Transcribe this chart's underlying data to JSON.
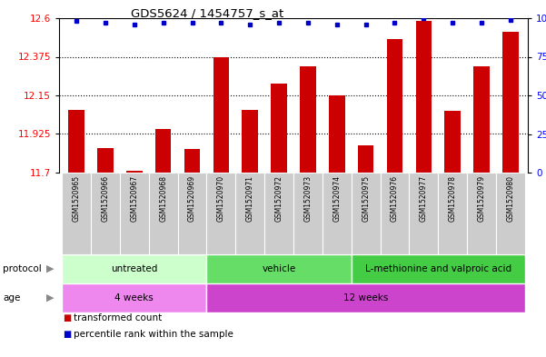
{
  "title": "GDS5624 / 1454757_s_at",
  "samples": [
    "GSM1520965",
    "GSM1520966",
    "GSM1520967",
    "GSM1520968",
    "GSM1520969",
    "GSM1520970",
    "GSM1520971",
    "GSM1520972",
    "GSM1520973",
    "GSM1520974",
    "GSM1520975",
    "GSM1520976",
    "GSM1520977",
    "GSM1520978",
    "GSM1520979",
    "GSM1520980"
  ],
  "bar_values": [
    12.065,
    11.845,
    11.71,
    11.955,
    11.835,
    12.37,
    12.065,
    12.22,
    12.32,
    12.15,
    11.86,
    12.48,
    12.585,
    12.06,
    12.32,
    12.52
  ],
  "percentile_values": [
    98,
    97,
    96,
    97,
    97,
    97,
    96,
    97,
    97,
    96,
    96,
    97,
    100,
    97,
    97,
    99
  ],
  "ylim_left": [
    11.7,
    12.6
  ],
  "ylim_right": [
    0,
    100
  ],
  "yticks_left": [
    11.7,
    11.925,
    12.15,
    12.375,
    12.6
  ],
  "yticks_right": [
    0,
    25,
    50,
    75,
    100
  ],
  "bar_color": "#cc0000",
  "dot_color": "#0000cc",
  "protocol_groups": [
    {
      "label": "untreated",
      "start": 0,
      "end": 5,
      "color": "#ccffcc"
    },
    {
      "label": "vehicle",
      "start": 5,
      "end": 10,
      "color": "#66dd66"
    },
    {
      "label": "L-methionine and valproic acid",
      "start": 10,
      "end": 16,
      "color": "#44cc44"
    }
  ],
  "age_groups": [
    {
      "label": "4 weeks",
      "start": 0,
      "end": 5,
      "color": "#ee88ee"
    },
    {
      "label": "12 weeks",
      "start": 5,
      "end": 16,
      "color": "#cc44cc"
    }
  ],
  "legend_items": [
    {
      "color": "#cc0000",
      "label": "transformed count"
    },
    {
      "color": "#0000cc",
      "label": "percentile rank within the sample"
    }
  ]
}
